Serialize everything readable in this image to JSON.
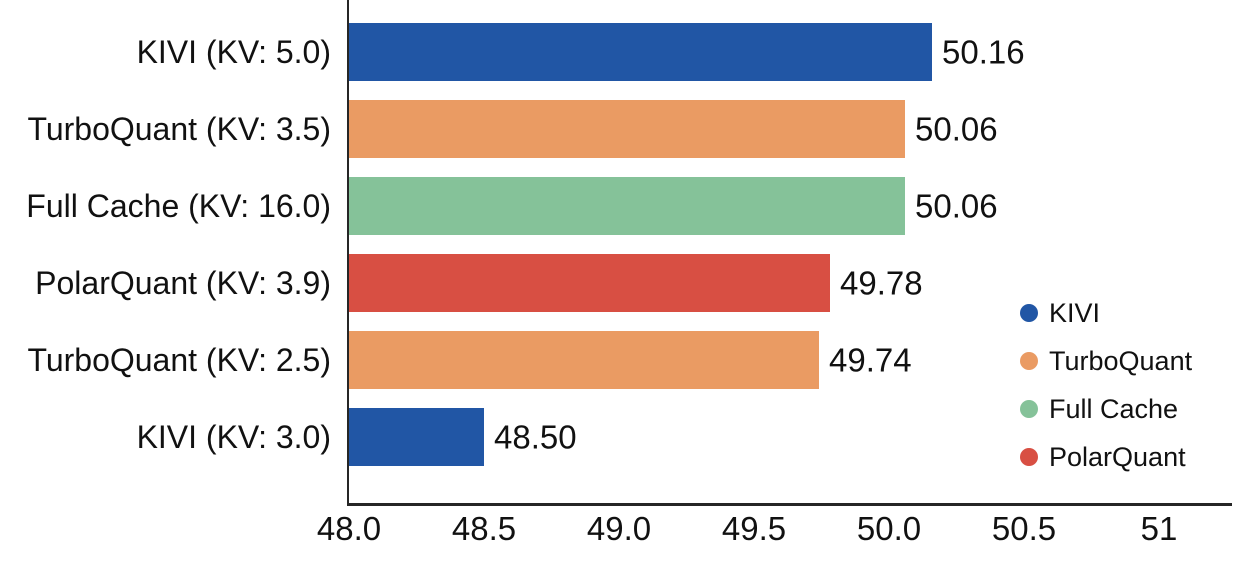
{
  "chart_data": {
    "type": "bar",
    "orientation": "horizontal",
    "title": "",
    "xlabel": "",
    "ylabel": "",
    "grid": false,
    "categories": [
      "KIVI (KV: 5.0)",
      "TurboQuant (KV: 3.5)",
      "Full Cache (KV: 16.0)",
      "PolarQuant (KV: 3.9)",
      "TurboQuant (KV: 2.5)",
      "KIVI (KV: 3.0)"
    ],
    "values": [
      50.16,
      50.06,
      50.06,
      49.78,
      49.74,
      48.5
    ],
    "value_labels": [
      "50.16",
      "50.06",
      "50.06",
      "49.78",
      "49.74",
      "48.50"
    ],
    "bar_series": [
      "KIVI",
      "TurboQuant",
      "Full Cache",
      "PolarQuant",
      "TurboQuant",
      "KIVI"
    ],
    "series_colors": {
      "KIVI": "#2156a5",
      "TurboQuant": "#ea9b63",
      "Full Cache": "#85c299",
      "PolarQuant": "#d84f43"
    },
    "xlim": [
      48.0,
      51.35
    ],
    "xticks": [
      48.0,
      48.5,
      49.0,
      49.5,
      50.0,
      50.5,
      51.0
    ],
    "xtick_labels": [
      "48.0",
      "48.5",
      "49.0",
      "49.5",
      "50.0",
      "50.5",
      "51"
    ],
    "legend": {
      "position": "right",
      "entries": [
        {
          "label": "KIVI",
          "color": "#2156a5"
        },
        {
          "label": "TurboQuant",
          "color": "#ea9b63"
        },
        {
          "label": "Full Cache",
          "color": "#85c299"
        },
        {
          "label": "PolarQuant",
          "color": "#d84f43"
        }
      ]
    },
    "axis_color": "#262626",
    "text_color": "#111111",
    "background_color": "#ffffff"
  }
}
